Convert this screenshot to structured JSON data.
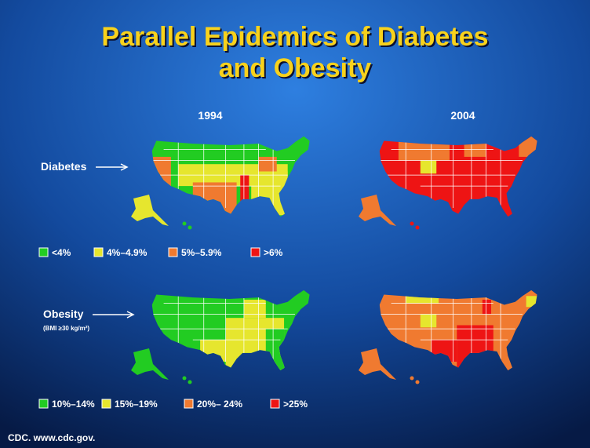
{
  "title": [
    "Parallel Epidemics of Diabetes",
    "and Obesity"
  ],
  "years": [
    "1994",
    "2004"
  ],
  "rows": [
    {
      "label": "Diabetes",
      "legend": [
        "<4%",
        "4%–4.9%",
        "5%–5.9%",
        ">6%"
      ]
    },
    {
      "label": "Obesity",
      "sublabel": "(BMI ≥30 kg/m²)",
      "legend": [
        "10%–14%",
        "15%–19%",
        "20%– 24%",
        ">25%"
      ]
    }
  ],
  "source": "CDC. www.cdc.gov."
}
